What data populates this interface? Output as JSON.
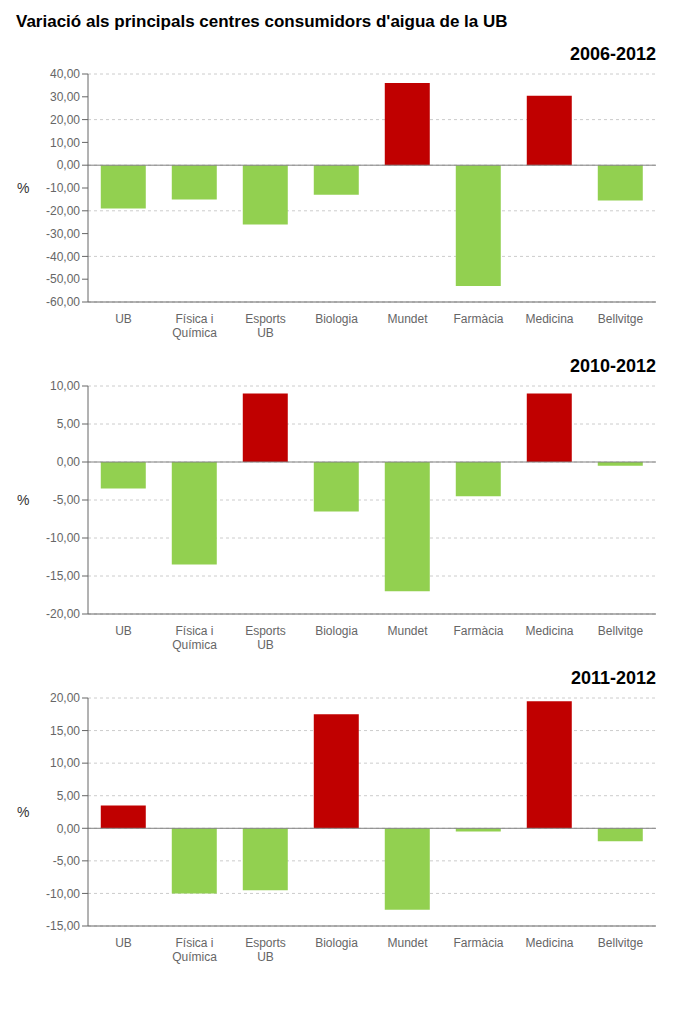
{
  "title": "Variació als principals centres consumidors d'aigua de la UB",
  "chart_data": [
    {
      "type": "bar",
      "title": "2006-2012",
      "ylabel": "%",
      "categories": [
        "UB",
        "Física i\nQuímica",
        "Esports\nUB",
        "Biologia",
        "Mundet",
        "Farmàcia",
        "Medicina",
        "Bellvitge"
      ],
      "values": [
        -19.0,
        -15.0,
        -26.0,
        -13.0,
        36.0,
        -53.0,
        30.5,
        -15.5
      ],
      "colors": [
        "#92D050",
        "#92D050",
        "#92D050",
        "#92D050",
        "#C00000",
        "#92D050",
        "#C00000",
        "#92D050"
      ],
      "ylim": [
        -60,
        40
      ],
      "yticks": [
        {
          "value": -60,
          "label": "-60,00"
        },
        {
          "value": -50,
          "label": "-50,00"
        },
        {
          "value": -40,
          "label": "-40,00"
        },
        {
          "value": -30,
          "label": "-30,00"
        },
        {
          "value": -20,
          "label": "-20,00"
        },
        {
          "value": -10,
          "label": "-10,00"
        },
        {
          "value": 0,
          "label": "0,00"
        },
        {
          "value": 10,
          "label": "10,00"
        },
        {
          "value": 20,
          "label": "20,00"
        },
        {
          "value": 30,
          "label": "30,00"
        },
        {
          "value": 40,
          "label": "40,00"
        }
      ],
      "grid": true
    },
    {
      "type": "bar",
      "title": "2010-2012",
      "ylabel": "%",
      "categories": [
        "UB",
        "Física i\nQuímica",
        "Esports\nUB",
        "Biologia",
        "Mundet",
        "Farmàcia",
        "Medicina",
        "Bellvitge"
      ],
      "values": [
        -3.5,
        -13.5,
        9.0,
        -6.5,
        -17.0,
        -4.5,
        9.0,
        -0.5
      ],
      "colors": [
        "#92D050",
        "#92D050",
        "#C00000",
        "#92D050",
        "#92D050",
        "#92D050",
        "#C00000",
        "#92D050"
      ],
      "ylim": [
        -20,
        10
      ],
      "yticks": [
        {
          "value": -20,
          "label": "-20,00"
        },
        {
          "value": -15,
          "label": "-15,00"
        },
        {
          "value": -10,
          "label": "-10,00"
        },
        {
          "value": -5,
          "label": "-5,00"
        },
        {
          "value": 0,
          "label": "0,00"
        },
        {
          "value": 5,
          "label": "5,00"
        },
        {
          "value": 10,
          "label": "10,00"
        }
      ],
      "grid": true
    },
    {
      "type": "bar",
      "title": "2011-2012",
      "ylabel": "%",
      "categories": [
        "UB",
        "Física i\nQuímica",
        "Esports\nUB",
        "Biologia",
        "Mundet",
        "Farmàcia",
        "Medicina",
        "Bellvitge"
      ],
      "values": [
        3.5,
        -10.0,
        -9.5,
        17.5,
        -12.5,
        -0.5,
        19.5,
        -2.0
      ],
      "colors": [
        "#C00000",
        "#92D050",
        "#92D050",
        "#C00000",
        "#92D050",
        "#92D050",
        "#C00000",
        "#92D050"
      ],
      "ylim": [
        -15,
        20
      ],
      "yticks": [
        {
          "value": -15,
          "label": "-15,00"
        },
        {
          "value": -10,
          "label": "-10,00"
        },
        {
          "value": -5,
          "label": "-5,00"
        },
        {
          "value": 0,
          "label": "0,00"
        },
        {
          "value": 5,
          "label": "5,00"
        },
        {
          "value": 10,
          "label": "10,00"
        },
        {
          "value": 15,
          "label": "15,00"
        },
        {
          "value": 20,
          "label": "20,00"
        }
      ],
      "grid": true
    }
  ]
}
